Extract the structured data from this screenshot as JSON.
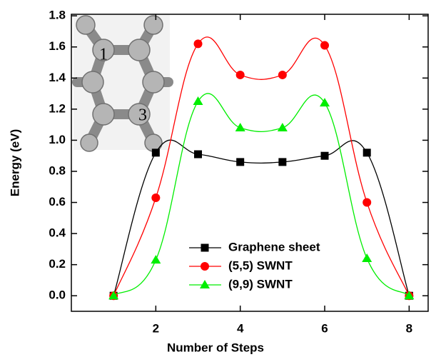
{
  "chart_data": {
    "type": "line",
    "x_label": "Number of Steps",
    "y_label": "Energy (eV)",
    "x": [
      1,
      2,
      3,
      4,
      5,
      6,
      7,
      8
    ],
    "series": [
      {
        "name": "Graphene sheet",
        "color": "#000000",
        "marker": "square",
        "values": [
          0,
          0.92,
          0.91,
          0.86,
          0.86,
          0.9,
          0.92,
          0
        ]
      },
      {
        "name": "(5,5) SWNT",
        "color": "#ff0000",
        "marker": "circle",
        "values": [
          0,
          0.63,
          1.62,
          1.42,
          1.42,
          1.61,
          0.6,
          0
        ]
      },
      {
        "name": "(9,9) SWNT",
        "color": "#00ee00",
        "marker": "triangle",
        "values": [
          0,
          0.23,
          1.25,
          1.08,
          1.08,
          1.24,
          0.24,
          0
        ]
      }
    ],
    "xlim": [
      0,
      8.45
    ],
    "ylim": [
      -0.1,
      1.81
    ],
    "xticks": [
      2,
      4,
      6,
      8
    ],
    "yticks": [
      {
        "value": 0,
        "label": "0.0"
      },
      0.2,
      0.4,
      0.6,
      0.8,
      {
        "value": 1,
        "label": "1.0"
      },
      1.2,
      1.4,
      1.6,
      1.8
    ],
    "inset_labels": [
      "1",
      "3"
    ]
  }
}
